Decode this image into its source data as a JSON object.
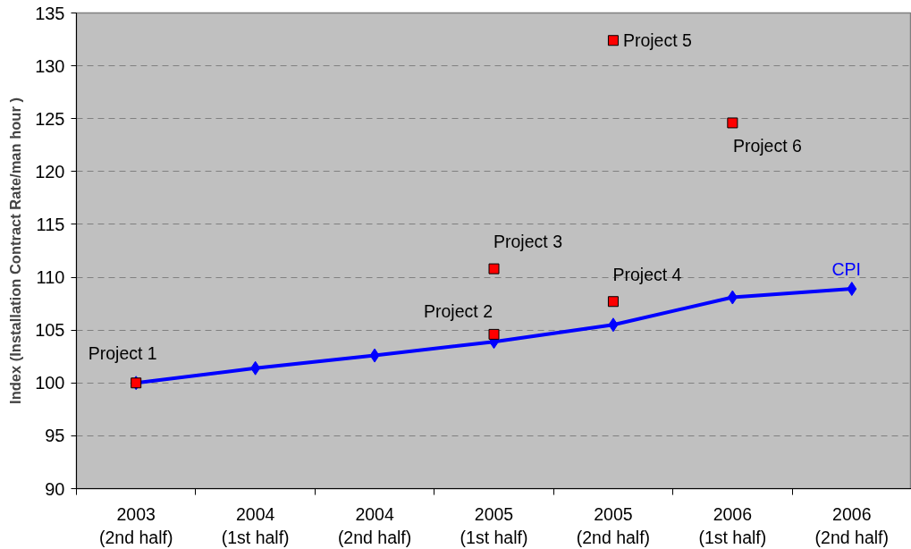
{
  "chart_data": {
    "type": "line",
    "ylabel": "Index (Installation Contract Rate/man hour )",
    "categories": [
      "2003\n(2nd half)",
      "2004\n(1st half)",
      "2004\n(2nd half)",
      "2005\n(1st half)",
      "2005\n(2nd half)",
      "2006\n(1st half)",
      "2006\n(2nd half)"
    ],
    "ylim": [
      90,
      135
    ],
    "yticks": [
      90,
      95,
      100,
      105,
      110,
      115,
      120,
      125,
      130,
      135
    ],
    "grid": "y",
    "series": [
      {
        "name": "CPI",
        "color": "#0000ff",
        "marker": "diamond",
        "line_style": "solid",
        "values": [
          100,
          101.4,
          102.6,
          103.9,
          105.5,
          108.1,
          108.9
        ]
      },
      {
        "name": "Project 1",
        "type": "scatter",
        "color": "#ff0000",
        "marker": "square",
        "x": [
          "2003\n(2nd half)"
        ],
        "values": [
          100
        ]
      },
      {
        "name": "Project 2",
        "type": "scatter",
        "color": "#ff0000",
        "marker": "square",
        "x": [
          "2005\n(1st half)"
        ],
        "values": [
          104.6
        ]
      },
      {
        "name": "Project 3",
        "type": "scatter",
        "color": "#ff0000",
        "marker": "square",
        "x": [
          "2005\n(1st half)"
        ],
        "values": [
          110.8
        ]
      },
      {
        "name": "Project 4",
        "type": "scatter",
        "color": "#ff0000",
        "marker": "square",
        "x": [
          "2005\n(2nd half)"
        ],
        "values": [
          107.7
        ]
      },
      {
        "name": "Project 5",
        "type": "scatter",
        "color": "#ff0000",
        "marker": "square",
        "x": [
          "2005\n(2nd half)"
        ],
        "values": [
          132.4
        ]
      },
      {
        "name": "Project 6",
        "type": "scatter",
        "color": "#ff0000",
        "marker": "square",
        "x": [
          "2006\n(1st half)"
        ],
        "values": [
          124.6
        ]
      }
    ]
  }
}
